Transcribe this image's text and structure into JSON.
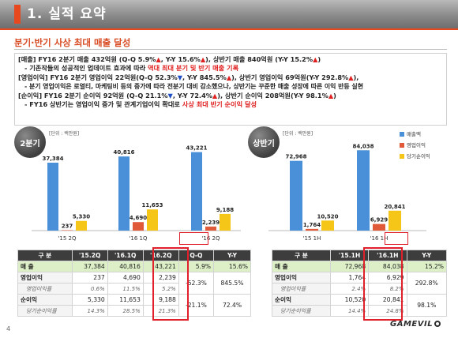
{
  "header": {
    "title": "1. 실적 요약"
  },
  "subtitle": "분기·반기 사상 최대 매출 달성",
  "summary": {
    "l1a": "[매출] FY16 2분기 매출 432억원 (Q-Q 5.9%",
    "l1b": ", Y-Y 15.6%",
    "l1c": "), 상반기 매출 840억원 (Y-Y 15.2%",
    "l1d": ")",
    "l2a": "- 기존작들의 성공적인 업데이트 효과에 따라 ",
    "l2b": "역대 최대 분기 및 반기 매출 기록",
    "l3a": "[영업이익] FY16 2분기 영업이익 22억원(Q-Q 52.3%",
    "l3b": ", Y-Y 845.5%",
    "l3c": "), 상반기 영업이익 69억원(Y-Y 292.8%",
    "l3d": "),",
    "l4": "- 분기 영업이익은 로열티, 마케팅비 등의 증가에 따라 전분기 대비 감소했으나, 상반기는 꾸준한 매출 성장에 따른 이익 반등 실현",
    "l5a": "[순이익] FY16 2분기 순이익 92억원 (Q-Q 21.1%",
    "l5b": ", Y-Y 72.4%",
    "l5c": "), 상반기 순이익 208억원(Y-Y 98.1%",
    "l5d": ")",
    "l6a": "- FY16 상반기는 영업이익 증가 및 관계기업이익 확대로 ",
    "l6b": "사상 최대 반기 순이익 달성",
    "up_glyph": "▲",
    "down_glyph": "▼"
  },
  "quarter": {
    "badge": "2분기",
    "unit": "[단위 : 백만원]",
    "table": {
      "headers": [
        "구 분",
        "'15.2Q",
        "'16.1Q",
        "'16.2Q",
        "Q-Q",
        "Y-Y"
      ],
      "rows": [
        [
          "매 출",
          "37,384",
          "40,816",
          "43,221",
          "5.9%",
          "15.6%"
        ],
        [
          "영업이익",
          "237",
          "4,690",
          "2,239",
          "-52.3%",
          "845.5%"
        ],
        [
          "영업이익률",
          "0.6%",
          "11.5%",
          "5.2%",
          "",
          ""
        ],
        [
          "순이익",
          "5,330",
          "11,653",
          "9,188",
          "-21.1%",
          "72.4%"
        ],
        [
          "당기순이익률",
          "14.3%",
          "28.5%",
          "21.3%",
          "",
          ""
        ]
      ]
    }
  },
  "half": {
    "badge": "상반기",
    "unit": "[단위 : 백만원]",
    "table": {
      "headers": [
        "구 분",
        "'15.1H",
        "'16.1H",
        "Y-Y"
      ],
      "rows": [
        [
          "매 출",
          "72,968",
          "84,038",
          "15.2%"
        ],
        [
          "영업이익",
          "1,764",
          "6,929",
          "292.8%"
        ],
        [
          "영업이익률",
          "2.4%",
          "8.2%",
          ""
        ],
        [
          "순이익",
          "10,520",
          "20,841",
          "98.1%"
        ],
        [
          "당기순이익률",
          "14.4%",
          "24.8%",
          ""
        ]
      ]
    }
  },
  "chart_data": [
    {
      "type": "bar",
      "categories": [
        "'15 2Q",
        "'16 1Q",
        "'16 2Q"
      ],
      "series": [
        {
          "name": "매출액",
          "values": [
            37384,
            40816,
            43221
          ],
          "color": "#4a90d9"
        },
        {
          "name": "영업이익",
          "values": [
            237,
            4690,
            2239
          ],
          "color": "#e05a3a"
        },
        {
          "name": "당기순이익",
          "values": [
            5330,
            11653,
            9188
          ],
          "color": "#f5c518"
        }
      ],
      "title": "",
      "xlabel": "",
      "ylabel": "",
      "unit_label": "[단위 : 백만원]",
      "data_labels": [
        [
          "37,384",
          "237",
          "5,330"
        ],
        [
          "40,816",
          "4,690",
          "11,653"
        ],
        [
          "43,221",
          "2,239",
          "9,188"
        ]
      ],
      "highlight_category": "'16 2Q",
      "ylim": [
        0,
        50000
      ]
    },
    {
      "type": "bar",
      "categories": [
        "'15 1H",
        "'16 1H"
      ],
      "series": [
        {
          "name": "매출액",
          "values": [
            72968,
            84038
          ],
          "color": "#4a90d9"
        },
        {
          "name": "영업이익",
          "values": [
            1764,
            6929
          ],
          "color": "#e05a3a"
        },
        {
          "name": "당기순이익",
          "values": [
            10520,
            20841
          ],
          "color": "#f5c518"
        }
      ],
      "title": "",
      "xlabel": "",
      "ylabel": "",
      "unit_label": "[단위 : 백만원]",
      "data_labels": [
        [
          "72,968",
          "1,764",
          "10,520"
        ],
        [
          "84,038",
          "6,929",
          "20,841"
        ]
      ],
      "highlight_category": "'16 1H",
      "legend": "right",
      "ylim": [
        0,
        95000
      ]
    }
  ],
  "footer": {
    "page": "4",
    "logo": "GAMEVIL"
  }
}
